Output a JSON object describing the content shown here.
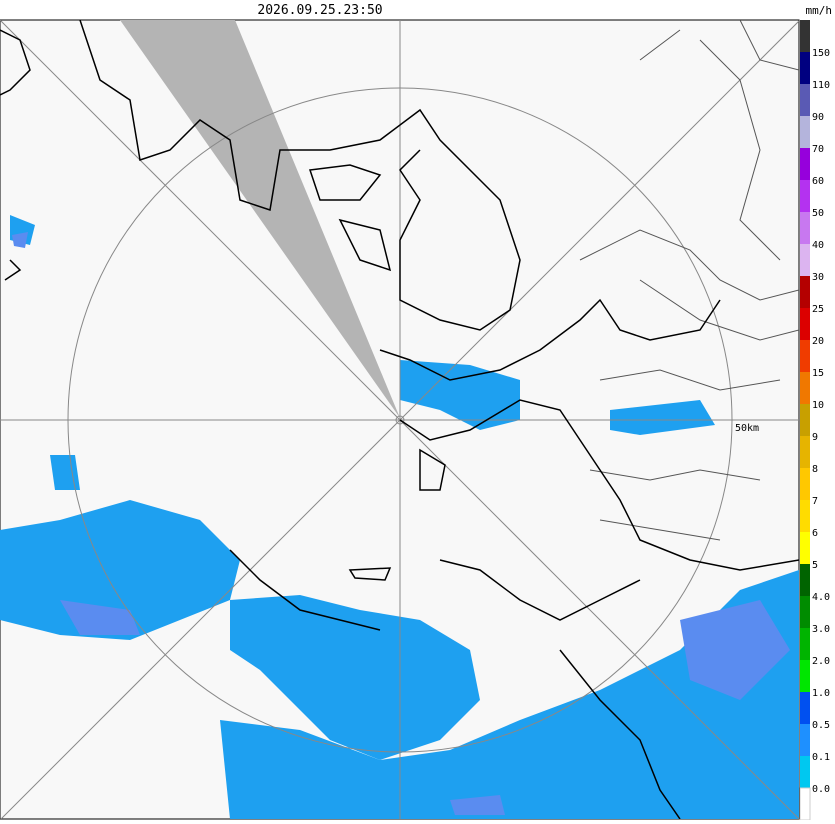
{
  "header": {
    "timestamp": "2026.09.25.23:50",
    "unit": "mm/h"
  },
  "map": {
    "range_label": "50km"
  },
  "legend": [
    {
      "label": "150",
      "color": "#333333"
    },
    {
      "label": "110",
      "color": "#000080"
    },
    {
      "label": "90",
      "color": "#5a5ab4"
    },
    {
      "label": "70",
      "color": "#b4b4dc"
    },
    {
      "label": "60",
      "color": "#9600dc"
    },
    {
      "label": "50",
      "color": "#b432f0"
    },
    {
      "label": "40",
      "color": "#c878f0"
    },
    {
      "label": "30",
      "color": "#dcb4f0"
    },
    {
      "label": "25",
      "color": "#b40000"
    },
    {
      "label": "20",
      "color": "#dc0000"
    },
    {
      "label": "15",
      "color": "#f03c00"
    },
    {
      "label": "10",
      "color": "#f07800"
    },
    {
      "label": "9",
      "color": "#c8a000"
    },
    {
      "label": "8",
      "color": "#e6b400"
    },
    {
      "label": "7",
      "color": "#ffc800"
    },
    {
      "label": "6",
      "color": "#ffdc00"
    },
    {
      "label": "5",
      "color": "#ffff00"
    },
    {
      "label": "4.0",
      "color": "#006400"
    },
    {
      "label": "3.0",
      "color": "#008c00"
    },
    {
      "label": "2.0",
      "color": "#00b400"
    },
    {
      "label": "1.0",
      "color": "#00e600"
    },
    {
      "label": "0.5",
      "color": "#0050f0"
    },
    {
      "label": "0.1",
      "color": "#1e90ff"
    },
    {
      "label": "0.0",
      "color": "#00c8f0"
    }
  ]
}
